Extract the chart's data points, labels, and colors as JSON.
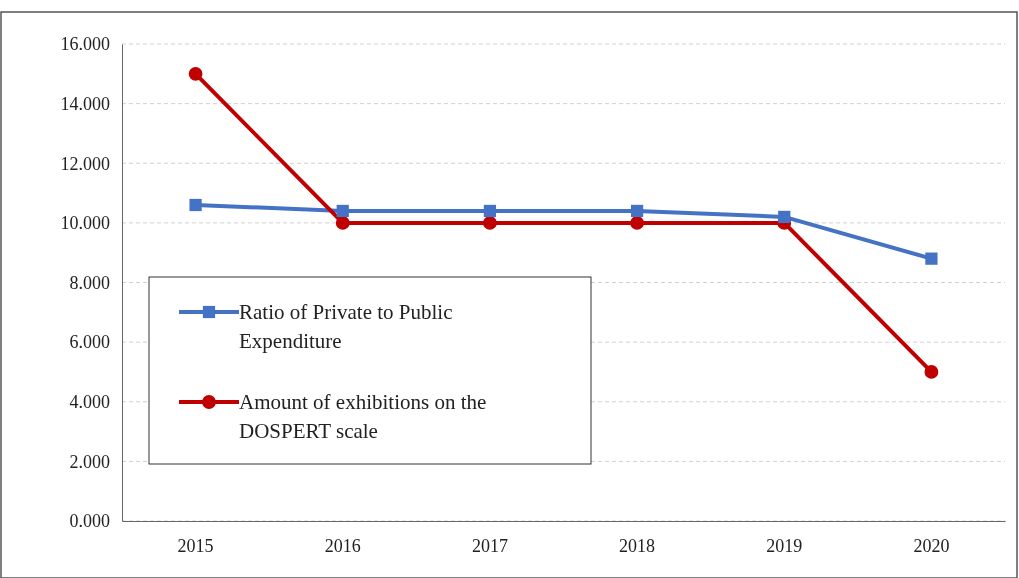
{
  "chart_data": {
    "type": "line",
    "categories": [
      "2015",
      "2016",
      "2017",
      "2018",
      "2019",
      "2020"
    ],
    "series": [
      {
        "name": "Ratio of Private to Public Expenditure",
        "color": "#4472c4",
        "marker": "square",
        "values": [
          10.6,
          10.4,
          10.4,
          10.4,
          10.2,
          8.8
        ]
      },
      {
        "name": "Amount of exhibitions on the DOSPERT scale",
        "color": "#c00000",
        "marker": "circle",
        "values": [
          15,
          10,
          10,
          10,
          10,
          5
        ]
      }
    ],
    "ylim": [
      0,
      16
    ],
    "yticks": [
      {
        "value": 0,
        "label": "0.000"
      },
      {
        "value": 2,
        "label": "2.000"
      },
      {
        "value": 4,
        "label": "4.000"
      },
      {
        "value": 6,
        "label": "6.000"
      },
      {
        "value": 8,
        "label": "8.000"
      },
      {
        "value": 10,
        "label": "10.000"
      },
      {
        "value": 12,
        "label": "12.000"
      },
      {
        "value": 14,
        "label": "14.000"
      },
      {
        "value": 16,
        "label": "16.000"
      }
    ],
    "grid": "y",
    "legend": "left",
    "line_style": "solid"
  }
}
